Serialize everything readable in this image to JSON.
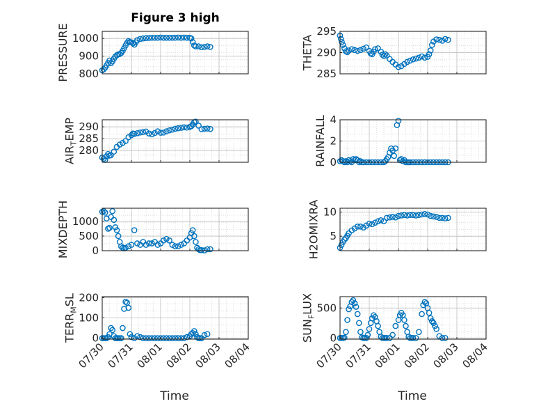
{
  "figure": {
    "title": "Figure 3 high",
    "marker_color": "#0072BD",
    "xlabel": "Time"
  },
  "chart_data": [
    {
      "type": "scatter",
      "name": "pressure-chart",
      "ylabel": "PRESSURE",
      "ylabel_main": "PRESSURE",
      "ylabel_sub": "",
      "ylabel_rest": "",
      "ylim": [
        800,
        1040
      ],
      "yticks": [
        800,
        900,
        1000
      ],
      "ytick_labels": [
        "800",
        "900",
        "1000"
      ],
      "xlim": [
        0,
        5
      ],
      "xtick_labels": [],
      "grid": true,
      "show_title": true,
      "x": [
        0.0,
        0.05,
        0.1,
        0.15,
        0.2,
        0.25,
        0.3,
        0.35,
        0.4,
        0.45,
        0.5,
        0.55,
        0.6,
        0.65,
        0.7,
        0.75,
        0.8,
        0.85,
        0.9,
        0.95,
        1.0,
        1.05,
        1.1,
        1.15,
        1.2,
        1.3,
        1.4,
        1.5,
        1.6,
        1.7,
        1.8,
        1.9,
        2.0,
        2.1,
        2.2,
        2.3,
        2.4,
        2.5,
        2.6,
        2.7,
        2.8,
        2.9,
        3.0,
        3.05,
        3.1,
        3.15,
        3.2,
        3.3,
        3.4,
        3.5,
        3.6,
        3.7
      ],
      "y": [
        820,
        825,
        835,
        848,
        862,
        875,
        860,
        870,
        885,
        898,
        905,
        910,
        912,
        918,
        930,
        945,
        960,
        975,
        985,
        980,
        978,
        972,
        965,
        978,
        990,
        997,
        1000,
        1002,
        1003,
        1004,
        1004,
        1004,
        1005,
        1004,
        1004,
        1004,
        1004,
        1004,
        1005,
        1004,
        1005,
        1004,
        1004,
        1000,
        980,
        960,
        955,
        955,
        950,
        952,
        955,
        952
      ]
    },
    {
      "type": "scatter",
      "name": "theta-chart",
      "ylabel": "THETA",
      "ylabel_main": "THETA",
      "ylabel_sub": "",
      "ylabel_rest": "",
      "ylim": [
        285,
        295
      ],
      "yticks": [
        285,
        290,
        295
      ],
      "ytick_labels": [
        "285",
        "290",
        "295"
      ],
      "xlim": [
        0,
        5
      ],
      "xtick_labels": [],
      "grid": true,
      "show_title": false,
      "x": [
        0.0,
        0.03,
        0.06,
        0.1,
        0.15,
        0.2,
        0.25,
        0.3,
        0.4,
        0.5,
        0.6,
        0.7,
        0.8,
        0.9,
        1.0,
        1.05,
        1.1,
        1.15,
        1.2,
        1.3,
        1.4,
        1.45,
        1.5,
        1.55,
        1.6,
        1.7,
        1.8,
        1.9,
        2.0,
        2.1,
        2.2,
        2.3,
        2.4,
        2.5,
        2.6,
        2.7,
        2.8,
        2.9,
        3.0,
        3.05,
        3.1,
        3.15,
        3.2,
        3.3,
        3.4,
        3.5,
        3.6,
        3.7
      ],
      "y": [
        294,
        293.2,
        292.5,
        291.8,
        291,
        290.3,
        290.1,
        290.5,
        290.8,
        290.6,
        290.4,
        290.6,
        290.9,
        291.2,
        290.4,
        289.8,
        289.6,
        290.2,
        290.8,
        291,
        290.2,
        289.5,
        289.2,
        289.6,
        289.3,
        288.5,
        287.8,
        287.2,
        286.6,
        286.8,
        287.3,
        287.8,
        288.1,
        288.4,
        288.6,
        288.8,
        289.1,
        288.8,
        289,
        289.6,
        290.5,
        291.8,
        292.6,
        293.1,
        293,
        292.8,
        293.2,
        293
      ]
    },
    {
      "type": "scatter",
      "name": "air-temp-chart",
      "ylabel": "AIR_TEMP",
      "ylabel_main": "AIR",
      "ylabel_sub": "T",
      "ylabel_rest": "EMP",
      "ylim": [
        275,
        293
      ],
      "yticks": [
        280,
        285,
        290
      ],
      "ytick_labels": [
        "280",
        "285",
        "290"
      ],
      "xlim": [
        0,
        5
      ],
      "xtick_labels": [],
      "grid": true,
      "show_title": false,
      "x": [
        0.0,
        0.05,
        0.1,
        0.15,
        0.2,
        0.25,
        0.3,
        0.4,
        0.5,
        0.6,
        0.7,
        0.8,
        0.9,
        1.0,
        1.05,
        1.1,
        1.2,
        1.3,
        1.4,
        1.5,
        1.6,
        1.7,
        1.8,
        1.9,
        2.0,
        2.1,
        2.2,
        2.3,
        2.4,
        2.5,
        2.6,
        2.7,
        2.8,
        2.9,
        3.0,
        3.05,
        3.1,
        3.15,
        3.2,
        3.3,
        3.4,
        3.5,
        3.6,
        3.7
      ],
      "y": [
        277,
        276.5,
        276,
        277.5,
        278.5,
        277.8,
        278,
        279.5,
        281.5,
        282.5,
        283.2,
        284,
        285.6,
        286.5,
        287.2,
        287,
        287.3,
        287.6,
        287.8,
        288,
        287.2,
        286.8,
        287.4,
        288.1,
        287.5,
        287.6,
        288.1,
        288.5,
        288.8,
        289.2,
        289.4,
        289.6,
        289.8,
        289.7,
        290,
        290.3,
        291,
        292,
        292.2,
        290.5,
        289,
        289.2,
        289.3,
        289.1
      ]
    },
    {
      "type": "scatter",
      "name": "rainfall-chart",
      "ylabel": "RAINFALL",
      "ylabel_main": "RAINFALL",
      "ylabel_sub": "",
      "ylabel_rest": "",
      "ylim": [
        0,
        4
      ],
      "yticks": [
        0,
        2,
        4
      ],
      "ytick_labels": [
        "0",
        "2",
        "4"
      ],
      "xlim": [
        0,
        5
      ],
      "xtick_labels": [],
      "grid": true,
      "show_title": false,
      "x": [
        0.0,
        0.05,
        0.1,
        0.15,
        0.2,
        0.25,
        0.3,
        0.35,
        0.4,
        0.45,
        0.5,
        0.55,
        0.6,
        0.65,
        0.7,
        0.75,
        0.8,
        0.9,
        1.0,
        1.1,
        1.2,
        1.3,
        1.4,
        1.5,
        1.55,
        1.6,
        1.65,
        1.7,
        1.75,
        1.8,
        1.85,
        1.9,
        1.95,
        2.0,
        2.05,
        2.1,
        2.15,
        2.2,
        2.25,
        2.3,
        2.35,
        2.4,
        2.5,
        2.6,
        2.7,
        2.8,
        2.9,
        3.0,
        3.1,
        3.2,
        3.3,
        3.4,
        3.5,
        3.6,
        3.7
      ],
      "y": [
        0.1,
        0.2,
        0.1,
        0,
        0.1,
        0,
        0.2,
        0.1,
        0,
        0.3,
        0.2,
        0.3,
        0.2,
        0,
        0.1,
        0,
        0,
        0,
        0,
        0,
        0,
        0,
        0,
        0,
        0.1,
        0.3,
        0.5,
        0.9,
        1.3,
        1.1,
        0.6,
        1.3,
        3.5,
        3.9,
        0.2,
        0.3,
        0.1,
        0.2,
        0,
        0,
        0,
        0,
        0,
        0,
        0,
        0,
        0,
        0,
        0,
        0,
        0,
        0,
        0,
        0,
        0
      ]
    },
    {
      "type": "scatter",
      "name": "mixdepth-chart",
      "ylabel": "MIXDEPTH",
      "ylabel_main": "MIXDEPTH",
      "ylabel_sub": "",
      "ylabel_rest": "",
      "ylim": [
        0,
        1450
      ],
      "yticks": [
        0,
        500,
        1000
      ],
      "ytick_labels": [
        "0",
        "500",
        "1000"
      ],
      "xlim": [
        0,
        5
      ],
      "xtick_labels": [],
      "grid": true,
      "show_title": false,
      "x": [
        0.0,
        0.05,
        0.1,
        0.15,
        0.2,
        0.25,
        0.3,
        0.35,
        0.4,
        0.45,
        0.5,
        0.55,
        0.6,
        0.65,
        0.7,
        0.75,
        0.8,
        0.9,
        1.0,
        1.1,
        1.2,
        1.3,
        1.4,
        1.5,
        1.6,
        1.7,
        1.8,
        1.9,
        2.0,
        2.1,
        2.2,
        2.3,
        2.4,
        2.5,
        2.6,
        2.7,
        2.8,
        2.9,
        3.0,
        3.05,
        3.1,
        3.15,
        3.2,
        3.25,
        3.3,
        3.35,
        3.4,
        3.5,
        3.6,
        3.7
      ],
      "y": [
        1330,
        1350,
        1300,
        1100,
        750,
        780,
        1150,
        1350,
        1050,
        800,
        700,
        500,
        300,
        150,
        100,
        80,
        100,
        150,
        200,
        700,
        250,
        200,
        300,
        200,
        250,
        250,
        300,
        200,
        250,
        350,
        400,
        350,
        200,
        150,
        150,
        200,
        250,
        350,
        450,
        600,
        700,
        500,
        300,
        100,
        50,
        20,
        20,
        10,
        50,
        50
      ]
    },
    {
      "type": "scatter",
      "name": "h2omixra-chart",
      "ylabel": "H2OMIXRA",
      "ylabel_main": "H2OMIXRA",
      "ylabel_sub": "",
      "ylabel_rest": "",
      "ylim": [
        2,
        10.8
      ],
      "yticks": [
        5,
        10
      ],
      "ytick_labels": [
        "5",
        "10"
      ],
      "xlim": [
        0,
        5
      ],
      "xtick_labels": [],
      "grid": true,
      "show_title": false,
      "x": [
        0.0,
        0.05,
        0.1,
        0.15,
        0.2,
        0.25,
        0.3,
        0.4,
        0.5,
        0.6,
        0.7,
        0.8,
        0.9,
        1.0,
        1.1,
        1.2,
        1.3,
        1.4,
        1.5,
        1.6,
        1.7,
        1.8,
        1.9,
        2.0,
        2.1,
        2.2,
        2.3,
        2.4,
        2.5,
        2.6,
        2.7,
        2.8,
        2.9,
        3.0,
        3.1,
        3.2,
        3.3,
        3.4,
        3.5,
        3.6,
        3.7
      ],
      "y": [
        2.6,
        3.2,
        3.8,
        4.3,
        4.6,
        5.1,
        5.6,
        6.2,
        6.6,
        7,
        7,
        6.8,
        7.2,
        7.6,
        7.5,
        7.8,
        8.1,
        8.3,
        8.1,
        8.8,
        8.9,
        9,
        8.9,
        9.2,
        9.3,
        9.4,
        9.3,
        9.4,
        9.4,
        9.3,
        9.4,
        9.5,
        9.6,
        9.5,
        9.2,
        9.1,
        9,
        8.8,
        8.8,
        8.7,
        8.8
      ]
    },
    {
      "type": "scatter",
      "name": "terr-msl-chart",
      "ylabel": "TERR_MSL",
      "ylabel_main": "TERR",
      "ylabel_sub": "M",
      "ylabel_rest": "SL",
      "ylim": [
        -5,
        205
      ],
      "yticks": [
        0,
        100,
        200
      ],
      "ytick_labels": [
        "0",
        "100",
        "200"
      ],
      "xlim": [
        0,
        5
      ],
      "xtick_labels": [
        "07/30",
        "07/31",
        "08/01",
        "08/02",
        "08/03",
        "08/04"
      ],
      "grid": true,
      "show_title": false,
      "x": [
        0.0,
        0.05,
        0.1,
        0.15,
        0.2,
        0.25,
        0.3,
        0.35,
        0.4,
        0.45,
        0.5,
        0.55,
        0.6,
        0.65,
        0.7,
        0.75,
        0.8,
        0.85,
        0.9,
        0.95,
        1.0,
        1.1,
        1.2,
        1.3,
        1.4,
        1.5,
        1.6,
        1.7,
        1.8,
        1.9,
        2.0,
        2.1,
        2.2,
        2.3,
        2.4,
        2.5,
        2.6,
        2.7,
        2.8,
        2.9,
        3.0,
        3.05,
        3.1,
        3.15,
        3.2,
        3.25,
        3.3,
        3.35,
        3.4,
        3.5,
        3.6
      ],
      "y": [
        0,
        0,
        0,
        0,
        5,
        20,
        50,
        40,
        10,
        0,
        0,
        0,
        0,
        0,
        50,
        145,
        180,
        175,
        150,
        20,
        5,
        0,
        10,
        5,
        0,
        0,
        0,
        0,
        0,
        0,
        0,
        0,
        0,
        0,
        0,
        0,
        0,
        0,
        0,
        5,
        10,
        20,
        25,
        35,
        20,
        5,
        0,
        0,
        0,
        15,
        20
      ]
    },
    {
      "type": "scatter",
      "name": "sunflux-chart",
      "ylabel": "SUN_FLUX",
      "ylabel_main": "SUN",
      "ylabel_sub": "F",
      "ylabel_rest": "LUX",
      "ylim": [
        -20,
        690
      ],
      "yticks": [
        0,
        500
      ],
      "ytick_labels": [
        "0",
        "500"
      ],
      "xlim": [
        0,
        5
      ],
      "xtick_labels": [
        "07/30",
        "07/31",
        "08/01",
        "08/02",
        "08/03",
        "08/04"
      ],
      "grid": true,
      "show_title": false,
      "x": [
        0.0,
        0.05,
        0.1,
        0.15,
        0.2,
        0.25,
        0.3,
        0.35,
        0.4,
        0.45,
        0.5,
        0.55,
        0.6,
        0.65,
        0.7,
        0.75,
        0.8,
        0.85,
        0.9,
        0.95,
        1.0,
        1.05,
        1.1,
        1.15,
        1.2,
        1.25,
        1.3,
        1.35,
        1.4,
        1.45,
        1.5,
        1.55,
        1.6,
        1.7,
        1.8,
        1.9,
        2.0,
        2.05,
        2.1,
        2.15,
        2.2,
        2.25,
        2.3,
        2.35,
        2.4,
        2.45,
        2.5,
        2.6,
        2.7,
        2.8,
        2.85,
        2.9,
        2.95,
        3.0,
        3.05,
        3.1,
        3.15,
        3.2,
        3.25,
        3.3,
        3.4,
        3.5,
        3.6
      ],
      "y": [
        0,
        0,
        0,
        5,
        100,
        300,
        480,
        530,
        600,
        630,
        580,
        520,
        400,
        250,
        100,
        10,
        0,
        0,
        0,
        50,
        150,
        250,
        330,
        380,
        350,
        280,
        200,
        100,
        20,
        0,
        0,
        0,
        0,
        0,
        50,
        200,
        300,
        380,
        420,
        380,
        300,
        200,
        100,
        20,
        0,
        0,
        0,
        0,
        100,
        400,
        550,
        600,
        580,
        500,
        420,
        330,
        280,
        250,
        200,
        150,
        30,
        0,
        0
      ]
    }
  ]
}
